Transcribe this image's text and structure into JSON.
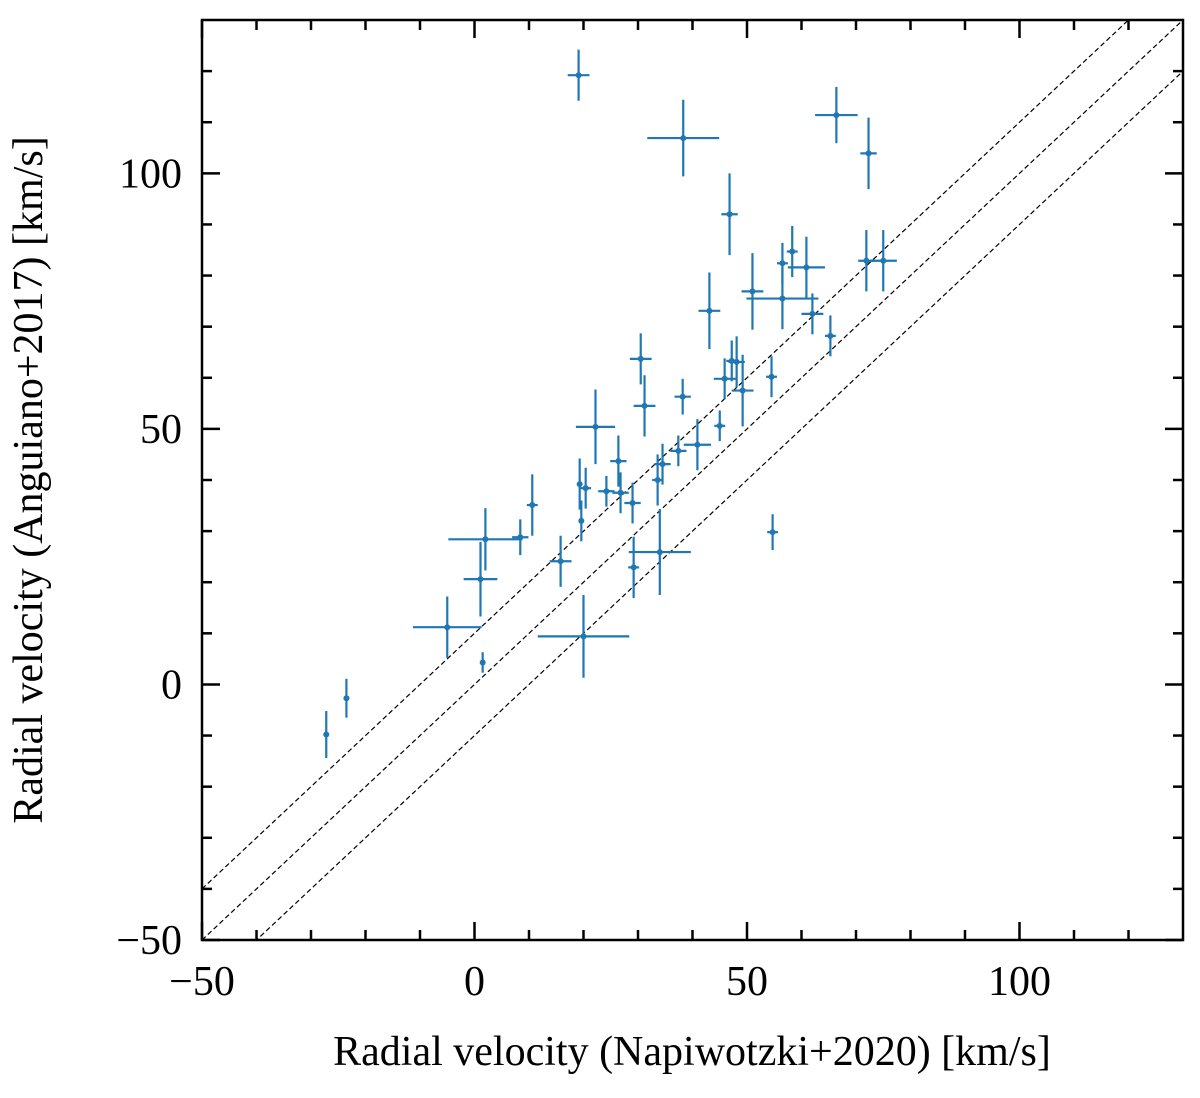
{
  "chart_data": {
    "type": "scatter",
    "xlabel": "Radial velocity (Napiwotzki+2020) [km/s]",
    "ylabel": "Radial velocity (Anguiano+2017) [km/s]",
    "xlim": [
      -50,
      130
    ],
    "ylim": [
      -50,
      130
    ],
    "xticks": [
      {
        "value": -50,
        "label": "−50"
      },
      0,
      50,
      100
    ],
    "yticks": [
      {
        "value": -50,
        "label": "−50"
      },
      0,
      50,
      100
    ],
    "xminorticks": [
      -40,
      -30,
      -20,
      -10,
      10,
      20,
      30,
      40,
      60,
      70,
      80,
      90,
      110,
      120
    ],
    "yminorticks": [
      -40,
      -30,
      -20,
      -10,
      10,
      20,
      30,
      40,
      60,
      70,
      80,
      90,
      110,
      120
    ],
    "reference_lines": [
      {
        "slope": 1,
        "intercept": 10
      },
      {
        "slope": 1,
        "intercept": 0
      },
      {
        "slope": 1,
        "intercept": -10
      }
    ],
    "series": [
      {
        "color": "#1f77b4",
        "x": [
          -27.2,
          -23.5,
          -5,
          1.5,
          1.1,
          2,
          8.4,
          10.6,
          15.8,
          20,
          19.1,
          19.3,
          19.6,
          20.4,
          22.2,
          24.2,
          26.4,
          26.8,
          29,
          29.2,
          30.5,
          31.2,
          33.6,
          34,
          34.5,
          37.4,
          38.2,
          38.3,
          40.9,
          43.1,
          45,
          45.9,
          46.8,
          47.2,
          48.1,
          49.2,
          51,
          54.5,
          54.7,
          56.5,
          56.5,
          58.3,
          60.9,
          62,
          65.3,
          66.4,
          72.3,
          71.9,
          75
        ],
        "values": [
          -9.8,
          -2.7,
          11.2,
          4.3,
          20.6,
          28.4,
          28.8,
          35.1,
          24.1,
          9.4,
          119.2,
          39.2,
          32,
          38.4,
          50.4,
          37.8,
          43.7,
          37.5,
          35.5,
          22.9,
          63.7,
          54.5,
          40,
          25.9,
          43.1,
          45.7,
          56.3,
          106.9,
          46.9,
          73.1,
          50.6,
          59.8,
          92,
          63.3,
          63.1,
          57.5,
          76.9,
          60.2,
          29.8,
          75.5,
          82.4,
          84.7,
          81.6,
          72.5,
          68.2,
          111.4,
          103.9,
          82.9,
          82.9
        ],
        "xerr": [
          0.5,
          0.5,
          6.3,
          0.5,
          3.1,
          6.8,
          1.5,
          1,
          2,
          8.4,
          2,
          0.5,
          0.5,
          1,
          3.6,
          1.5,
          1.5,
          1.5,
          1.5,
          1,
          2,
          2,
          1,
          5.7,
          1.5,
          1.5,
          1.5,
          6.6,
          2.5,
          2,
          1,
          2,
          1.5,
          1,
          1.5,
          2,
          2,
          1,
          1,
          6.6,
          1,
          1,
          3.4,
          2,
          1,
          3.9,
          1.5,
          1.5,
          2.5
        ],
        "yerr": [
          4.6,
          3.8,
          6,
          2,
          7.3,
          6.1,
          3.5,
          6,
          5,
          8.1,
          5,
          5,
          4,
          4,
          7.3,
          3,
          5,
          4,
          4,
          6,
          5,
          6,
          5,
          8.4,
          4,
          3,
          3.5,
          7.5,
          5,
          7.5,
          3,
          4,
          8,
          4,
          5,
          7,
          7.5,
          4,
          3.5,
          6,
          4,
          5,
          6,
          4,
          4,
          5.5,
          7,
          6,
          6
        ]
      }
    ]
  }
}
